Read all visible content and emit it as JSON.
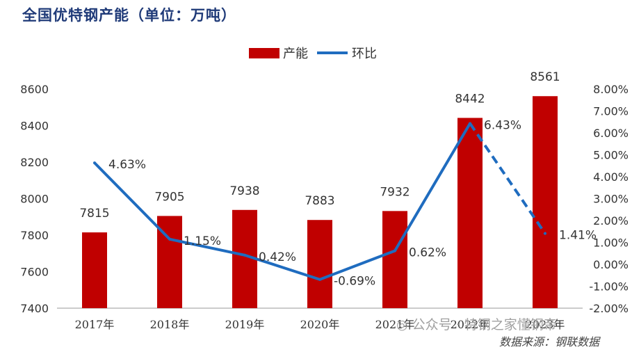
{
  "title": "全国优特钢产能（单位：万吨）",
  "legend": {
    "bar": "产能",
    "line": "环比"
  },
  "watermark": "◎ 公众号 · 特钢之家懂钢帝",
  "source": "数据来源：钢联数据",
  "colors": {
    "bar": "#c00000",
    "line": "#1f6cbf",
    "title": "#1f3a78"
  },
  "chart_data": {
    "type": "bar+line",
    "title": "全国优特钢产能（单位：万吨）",
    "categories": [
      "2017年",
      "2018年",
      "2019年",
      "2020年",
      "2021年",
      "2022年",
      "2023年"
    ],
    "series": [
      {
        "name": "产能",
        "type": "bar",
        "axis": "left",
        "values": [
          7815,
          7905,
          7938,
          7883,
          7932,
          8442,
          8561
        ],
        "labels": [
          "7815",
          "7905",
          "7938",
          "7883",
          "7932",
          "8442",
          "8561"
        ]
      },
      {
        "name": "环比",
        "type": "line",
        "axis": "right",
        "values": [
          4.63,
          1.15,
          0.42,
          -0.69,
          0.62,
          6.43,
          1.41
        ],
        "labels": [
          "4.63%",
          "1.15%",
          "0.42%",
          "-0.69%",
          "0.62%",
          "6.43%",
          "1.41%"
        ],
        "dashed_last_segment": true
      }
    ],
    "y_left": {
      "min": 7400,
      "max": 8600,
      "ticks": [
        "7400",
        "7600",
        "7800",
        "8000",
        "8200",
        "8400",
        "8600"
      ]
    },
    "y_right": {
      "min": -2,
      "max": 8,
      "ticks": [
        "-2.00%",
        "-1.00%",
        "0.00%",
        "1.00%",
        "2.00%",
        "3.00%",
        "4.00%",
        "5.00%",
        "6.00%",
        "7.00%",
        "8.00%"
      ]
    },
    "legend_position": "top-center",
    "grid": false
  }
}
